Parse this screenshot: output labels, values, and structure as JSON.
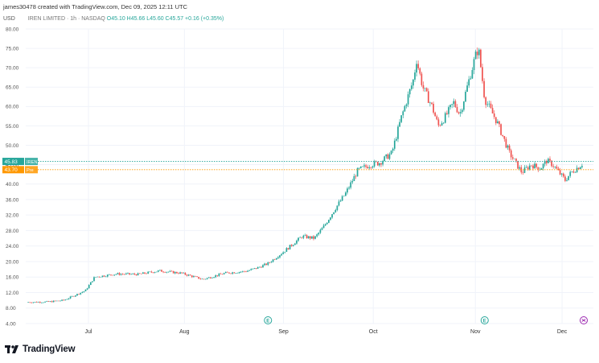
{
  "header": {
    "created_by": "james30478 created with TradingView.com, Dec 09, 2025 12:11 UTC"
  },
  "symbol_bar": {
    "currency": "USD",
    "title": "IREN LIMITED · 1h · NASDAQ",
    "quote": "O45.10 H45.66 L45.60 C45.57 +0.16 (+0.35%)"
  },
  "price_labels": {
    "last": "45.83",
    "last_tag": "IREN",
    "pre": "43.70",
    "pre_tag": "Pre"
  },
  "brand": "TradingView",
  "colors": {
    "up": "#26a69a",
    "down": "#ef5350",
    "last_price": "#26a69a",
    "pre_price": "#ff9800",
    "grid": "#f0f3fa",
    "earnings": "#26a69a",
    "dividend": "#9c27b0"
  },
  "icons": [
    "earnings-icon",
    "split-icon",
    "tradingview-logo-icon"
  ],
  "chart_data": {
    "type": "candlestick",
    "x_labels": [
      "Jul",
      "Aug",
      "Sep",
      "Oct",
      "Nov",
      "Dec"
    ],
    "y_ticks": [
      "4.00",
      "8.00",
      "12.00",
      "16.00",
      "20.00",
      "24.00",
      "28.00",
      "32.00",
      "36.00",
      "40.00",
      "45.00",
      "50.00",
      "55.00",
      "60.00",
      "65.00",
      "70.00",
      "75.00",
      "80.00"
    ],
    "ylim": [
      4,
      80
    ],
    "grid": true,
    "last_price": 45.83,
    "pre_price": 43.7,
    "trend": [
      [
        "Jun 11",
        9.5
      ],
      [
        "Jun 18",
        9.6
      ],
      [
        "Jun 23",
        10.0
      ],
      [
        "Jun 30",
        12.5
      ],
      [
        "Jul 03",
        16.0
      ],
      [
        "Jul 10",
        16.8
      ],
      [
        "Jul 17",
        16.7
      ],
      [
        "Jul 24",
        17.6
      ],
      [
        "Jul 31",
        17.0
      ],
      [
        "Aug 07",
        15.4
      ],
      [
        "Aug 14",
        17.0
      ],
      [
        "Aug 21",
        17.5
      ],
      [
        "Aug 25",
        18.5
      ],
      [
        "Aug 28",
        19.5
      ],
      [
        "Sep 02",
        22.5
      ],
      [
        "Sep 08",
        26.5
      ],
      [
        "Sep 12",
        26.0
      ],
      [
        "Sep 15",
        29.0
      ],
      [
        "Sep 19",
        34.0
      ],
      [
        "Sep 22",
        37.5
      ],
      [
        "Sep 26",
        43.5
      ],
      [
        "Sep 30",
        45.0
      ],
      [
        "Oct 03",
        45.5
      ],
      [
        "Oct 07",
        48.0
      ],
      [
        "Oct 10",
        57.0
      ],
      [
        "Oct 14",
        67.0
      ],
      [
        "Oct 15",
        72.0
      ],
      [
        "Oct 17",
        65.0
      ],
      [
        "Oct 20",
        60.0
      ],
      [
        "Oct 22",
        55.0
      ],
      [
        "Oct 24",
        57.0
      ],
      [
        "Oct 27",
        61.0
      ],
      [
        "Oct 29",
        58.0
      ],
      [
        "Nov 03",
        73.0
      ],
      [
        "Nov 04",
        75.0
      ],
      [
        "Nov 06",
        62.0
      ],
      [
        "Nov 10",
        56.0
      ],
      [
        "Nov 14",
        48.0
      ],
      [
        "Nov 18",
        43.0
      ],
      [
        "Nov 21",
        45.0
      ],
      [
        "Nov 24",
        44.0
      ],
      [
        "Nov 26",
        46.0
      ],
      [
        "Nov 28",
        45.0
      ],
      [
        "Dec 02",
        41.0
      ],
      [
        "Dec 04",
        43.0
      ],
      [
        "Dec 08",
        45.5
      ]
    ],
    "events": [
      {
        "date": "Aug 28",
        "type": "earnings",
        "label": "E"
      },
      {
        "date": "Nov 06",
        "type": "earnings",
        "label": "E"
      },
      {
        "date": "Dec 08",
        "type": "split"
      }
    ]
  }
}
